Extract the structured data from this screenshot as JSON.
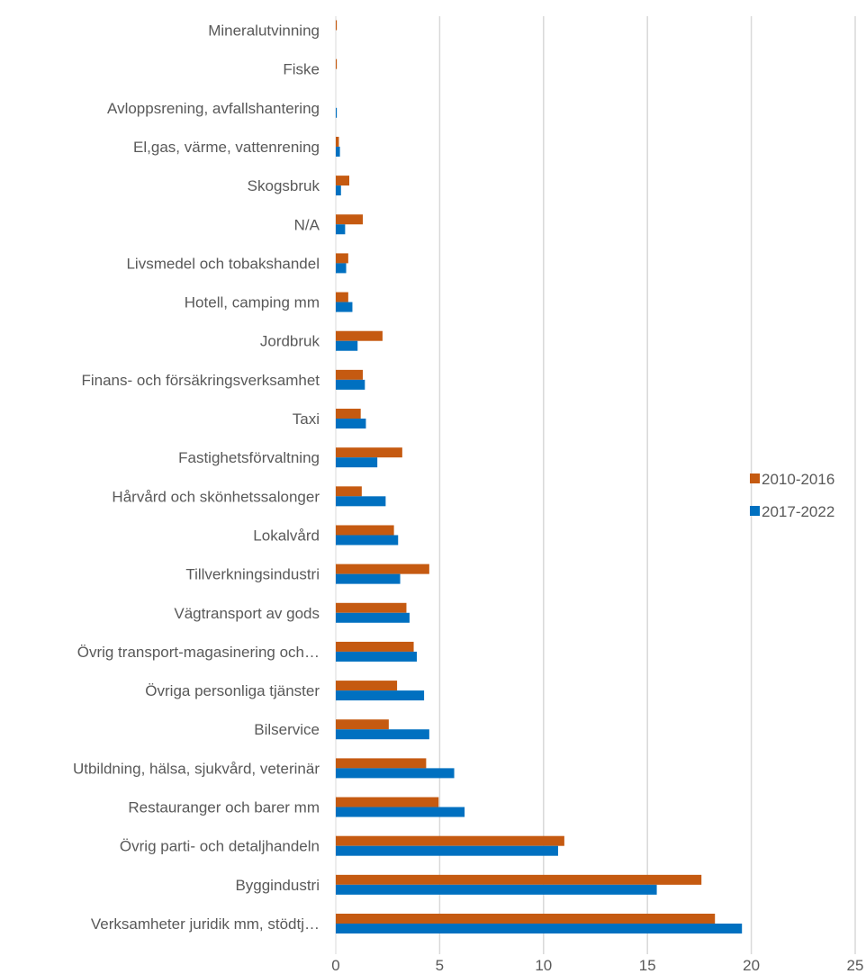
{
  "chart_data": {
    "type": "bar",
    "orientation": "horizontal",
    "categories": [
      "Mineralutvinning",
      "Fiske",
      "Avloppsrening, avfallshantering",
      "El,gas, värme, vattenrening",
      "Skogsbruk",
      "N/A",
      "Livsmedel och tobakshandel",
      "Hotell, camping mm",
      "Jordbruk",
      "Finans- och försäkringsverksamhet",
      "Taxi",
      "Fastighetsförvaltning",
      "Hårvård och skönhetssalonger",
      "Lokalvård",
      "Tillverkningsindustri",
      "Vägtransport av gods",
      "Övrig transport-magasinering och…",
      "Övriga personliga tjänster",
      "Bilservice",
      "Utbildning, hälsa, sjukvård, veterinär",
      "Restauranger och barer mm",
      "Övrig parti- och detaljhandeln",
      "Byggindustri",
      "Verksamheter juridik mm, stödtj…"
    ],
    "series": [
      {
        "name": "2010-2016",
        "color": "#c55a11",
        "values": [
          0.05,
          0.05,
          0.0,
          0.15,
          0.65,
          1.3,
          0.6,
          0.6,
          2.25,
          1.3,
          1.2,
          3.2,
          1.25,
          2.8,
          4.5,
          3.4,
          3.75,
          2.95,
          2.55,
          4.35,
          4.95,
          11.0,
          17.6,
          18.25
        ]
      },
      {
        "name": "2017-2022",
        "color": "#0070c0",
        "values": [
          0.0,
          0.0,
          0.05,
          0.2,
          0.25,
          0.45,
          0.5,
          0.8,
          1.05,
          1.4,
          1.45,
          2.0,
          2.4,
          3.0,
          3.1,
          3.55,
          3.9,
          4.25,
          4.5,
          5.7,
          6.2,
          10.7,
          15.45,
          19.55
        ]
      }
    ],
    "xlim": [
      0,
      25
    ],
    "xticks": [
      0,
      5,
      10,
      15,
      20,
      25
    ],
    "grid": true,
    "legend_position": "right"
  }
}
